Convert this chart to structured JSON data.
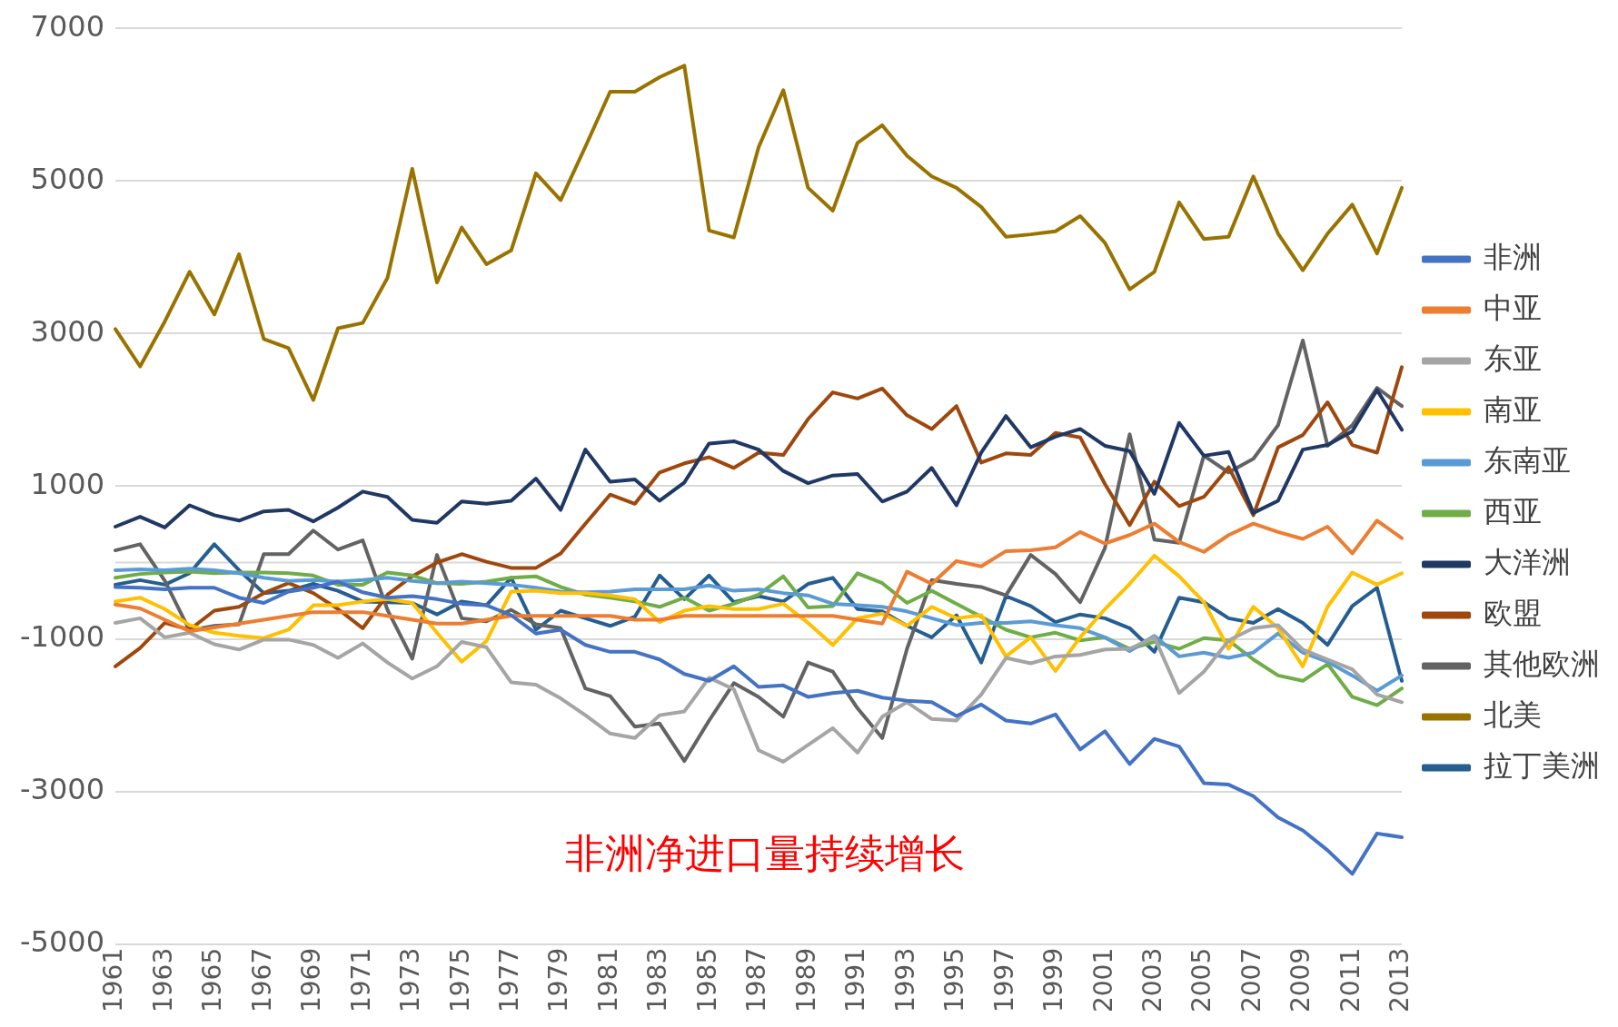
{
  "chart_data": {
    "type": "line",
    "categories": [
      "1961",
      null,
      "1963",
      null,
      "1965",
      null,
      "1967",
      null,
      "1969",
      null,
      "1971",
      null,
      "1973",
      null,
      "1975",
      null,
      "1977",
      null,
      "1979",
      null,
      "1981",
      null,
      "1983",
      null,
      "1985",
      null,
      "1987",
      null,
      "1989",
      null,
      "1991",
      null,
      "1993",
      null,
      "1995",
      null,
      "1997",
      null,
      "1999",
      null,
      "2001",
      null,
      "2003",
      null,
      "2005",
      null,
      "2007",
      null,
      "2009",
      null,
      "2011",
      null,
      "2013"
    ],
    "ylim": [
      -5000,
      7000
    ],
    "yticks": [
      -5000,
      -3000,
      -1000,
      1000,
      3000,
      5000,
      7000
    ],
    "grid": "y",
    "legend": "right",
    "annotations": [
      "非洲净进口量持续增长"
    ],
    "series": [
      {
        "name": "非洲",
        "color": "#4472c4",
        "values": [
          -320,
          -330,
          -350,
          -330,
          -330,
          -460,
          -530,
          -380,
          -330,
          -250,
          -390,
          -460,
          -440,
          -480,
          -540,
          -560,
          -690,
          -930,
          -880,
          -1080,
          -1170,
          -1170,
          -1270,
          -1460,
          -1550,
          -1360,
          -1630,
          -1610,
          -1760,
          -1710,
          -1680,
          -1770,
          -1810,
          -1830,
          -2010,
          -1860,
          -2070,
          -2110,
          -1990,
          -2450,
          -2210,
          -2640,
          -2310,
          -2410,
          -2890,
          -2910,
          -3060,
          -3340,
          -3510,
          -3770,
          -4080,
          -3550,
          -3600
        ]
      },
      {
        "name": "中亚",
        "color": "#ed7d31",
        "values": [
          -550,
          -600,
          -750,
          -900,
          -850,
          -800,
          -750,
          -700,
          -650,
          -650,
          -650,
          -700,
          -750,
          -800,
          -800,
          -750,
          -700,
          -700,
          -700,
          -700,
          -700,
          -750,
          -750,
          -700,
          -700,
          -700,
          -700,
          -700,
          -700,
          -700,
          -750,
          -800,
          -120,
          -280,
          20,
          -50,
          150,
          160,
          200,
          400,
          250,
          360,
          510,
          270,
          140,
          360,
          510,
          400,
          310,
          470,
          120,
          550,
          320
        ]
      },
      {
        "name": "东亚",
        "color": "#a5a5a5",
        "values": [
          -790,
          -730,
          -980,
          -920,
          -1070,
          -1140,
          -1010,
          -1010,
          -1080,
          -1250,
          -1060,
          -1310,
          -1520,
          -1360,
          -1040,
          -1110,
          -1570,
          -1600,
          -1780,
          -2000,
          -2240,
          -2300,
          -2000,
          -1950,
          -1510,
          -1660,
          -2460,
          -2610,
          -2390,
          -2170,
          -2490,
          -2020,
          -1830,
          -2050,
          -2070,
          -1730,
          -1250,
          -1320,
          -1230,
          -1210,
          -1140,
          -1130,
          -980,
          -1710,
          -1430,
          -1020,
          -860,
          -820,
          -1140,
          -1270,
          -1400,
          -1730,
          -1830
        ]
      },
      {
        "name": "南亚",
        "color": "#ffc000",
        "values": [
          -510,
          -460,
          -610,
          -820,
          -920,
          -960,
          -990,
          -880,
          -560,
          -560,
          -510,
          -480,
          -530,
          -920,
          -1300,
          -1030,
          -380,
          -370,
          -400,
          -400,
          -430,
          -480,
          -780,
          -630,
          -570,
          -610,
          -610,
          -540,
          -790,
          -1080,
          -730,
          -670,
          -830,
          -580,
          -730,
          -690,
          -1230,
          -980,
          -1420,
          -980,
          -610,
          -280,
          90,
          -180,
          -520,
          -1130,
          -580,
          -860,
          -1360,
          -580,
          -130,
          -290,
          -140
        ]
      },
      {
        "name": "东南亚",
        "color": "#5b9bd5",
        "values": [
          -100,
          -90,
          -100,
          -80,
          -100,
          -140,
          -200,
          -240,
          -230,
          -250,
          -230,
          -200,
          -240,
          -270,
          -250,
          -270,
          -290,
          -330,
          -380,
          -390,
          -380,
          -350,
          -350,
          -350,
          -300,
          -370,
          -350,
          -400,
          -430,
          -540,
          -560,
          -580,
          -640,
          -730,
          -820,
          -790,
          -790,
          -770,
          -820,
          -860,
          -980,
          -1160,
          -960,
          -1230,
          -1180,
          -1250,
          -1180,
          -930,
          -1180,
          -1300,
          -1480,
          -1680,
          -1480
        ]
      },
      {
        "name": "西亚",
        "color": "#70ad47",
        "values": [
          -200,
          -150,
          -130,
          -120,
          -140,
          -130,
          -130,
          -140,
          -170,
          -290,
          -290,
          -130,
          -170,
          -270,
          -280,
          -250,
          -200,
          -180,
          -320,
          -420,
          -460,
          -510,
          -580,
          -460,
          -630,
          -540,
          -420,
          -180,
          -590,
          -570,
          -140,
          -270,
          -530,
          -370,
          -540,
          -710,
          -880,
          -980,
          -920,
          -1020,
          -980,
          -1130,
          -1040,
          -1130,
          -990,
          -1020,
          -1270,
          -1480,
          -1550,
          -1330,
          -1760,
          -1870,
          -1650
        ]
      },
      {
        "name": "大洋洲",
        "color": "#203864",
        "values": [
          470,
          600,
          460,
          750,
          620,
          550,
          670,
          690,
          540,
          720,
          930,
          860,
          560,
          520,
          800,
          770,
          810,
          1100,
          690,
          1480,
          1060,
          1090,
          810,
          1050,
          1560,
          1590,
          1480,
          1200,
          1040,
          1140,
          1160,
          800,
          930,
          1240,
          750,
          1440,
          1920,
          1510,
          1650,
          1750,
          1530,
          1460,
          900,
          1830,
          1400,
          1450,
          650,
          810,
          1480,
          1540,
          1720,
          2260,
          1740
        ]
      },
      {
        "name": "欧盟",
        "color": "#9e480e",
        "values": [
          -1360,
          -1120,
          -790,
          -880,
          -630,
          -580,
          -400,
          -270,
          -400,
          -610,
          -860,
          -420,
          -180,
          0,
          110,
          10,
          -70,
          -70,
          120,
          510,
          890,
          770,
          1180,
          1300,
          1380,
          1240,
          1440,
          1410,
          1880,
          2230,
          2150,
          2280,
          1930,
          1750,
          2050,
          1310,
          1430,
          1410,
          1700,
          1640,
          1030,
          490,
          1060,
          740,
          860,
          1250,
          620,
          1510,
          1670,
          2100,
          1540,
          1440,
          2560
        ]
      },
      {
        "name": "其他欧洲",
        "color": "#636363",
        "values": [
          160,
          240,
          -240,
          -890,
          -830,
          -810,
          110,
          110,
          420,
          170,
          290,
          -620,
          -1260,
          100,
          -730,
          -770,
          -620,
          -810,
          -860,
          -1650,
          -1750,
          -2150,
          -2110,
          -2600,
          -2070,
          -1580,
          -1760,
          -2020,
          -1310,
          -1430,
          -1910,
          -2300,
          -1130,
          -230,
          -280,
          -320,
          -430,
          100,
          -150,
          -520,
          190,
          1680,
          300,
          260,
          1400,
          1180,
          1360,
          1800,
          2910,
          1530,
          1800,
          2290,
          2050
        ]
      },
      {
        "name": "北美",
        "color": "#997300",
        "values": [
          3060,
          2570,
          3160,
          3810,
          3250,
          4040,
          2930,
          2810,
          2130,
          3070,
          3140,
          3730,
          5160,
          3670,
          4390,
          3910,
          4090,
          5100,
          4750,
          5450,
          6170,
          6170,
          6360,
          6510,
          4350,
          4260,
          5440,
          6190,
          4910,
          4610,
          5500,
          5730,
          5330,
          5060,
          4910,
          4660,
          4270,
          4300,
          4340,
          4540,
          4190,
          3580,
          3810,
          4720,
          4240,
          4270,
          5060,
          4310,
          3830,
          4310,
          4690,
          4050,
          4910
        ]
      },
      {
        "name": "拉丁美洲",
        "color": "#255e91",
        "values": [
          -290,
          -230,
          -290,
          -140,
          240,
          -100,
          -400,
          -370,
          -280,
          -370,
          -510,
          -520,
          -530,
          -680,
          -510,
          -560,
          -200,
          -880,
          -630,
          -730,
          -830,
          -710,
          -170,
          -480,
          -170,
          -520,
          -440,
          -510,
          -280,
          -200,
          -610,
          -640,
          -830,
          -980,
          -690,
          -1310,
          -440,
          -570,
          -780,
          -680,
          -730,
          -860,
          -1170,
          -460,
          -520,
          -730,
          -790,
          -610,
          -790,
          -1080,
          -570,
          -330,
          -1550
        ]
      }
    ]
  }
}
